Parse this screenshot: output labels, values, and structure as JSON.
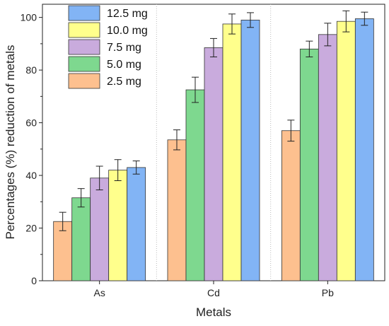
{
  "chart_data": {
    "type": "bar",
    "title": "",
    "xlabel": "Metals",
    "ylabel": "Percentages (%) reduction of metals",
    "categories": [
      "As",
      "Cd",
      "Pb"
    ],
    "ylim": [
      0,
      105
    ],
    "yticks": [
      0,
      20,
      40,
      60,
      80,
      100
    ],
    "grid": false,
    "legend_position": "top-left",
    "error_bars": true,
    "series": [
      {
        "name": "2.5 mg",
        "color": "#FDC08F",
        "values": [
          22.5,
          53.5,
          57.0
        ],
        "errors": [
          3.5,
          3.8,
          4.0
        ]
      },
      {
        "name": "5.0 mg",
        "color": "#7ED88F",
        "values": [
          31.5,
          72.5,
          88.0
        ],
        "errors": [
          3.5,
          4.8,
          3.0
        ]
      },
      {
        "name": "7.5 mg",
        "color": "#C9ABDD",
        "values": [
          39.0,
          88.5,
          93.5
        ],
        "errors": [
          4.5,
          3.5,
          4.3
        ]
      },
      {
        "name": "10.0 mg",
        "color": "#FFFF8C",
        "values": [
          42.0,
          97.5,
          98.5
        ],
        "errors": [
          4.0,
          3.8,
          4.0
        ]
      },
      {
        "name": "12.5 mg",
        "color": "#82B4F5",
        "values": [
          43.0,
          99.0,
          99.5
        ],
        "errors": [
          2.5,
          2.8,
          2.5
        ]
      }
    ]
  }
}
